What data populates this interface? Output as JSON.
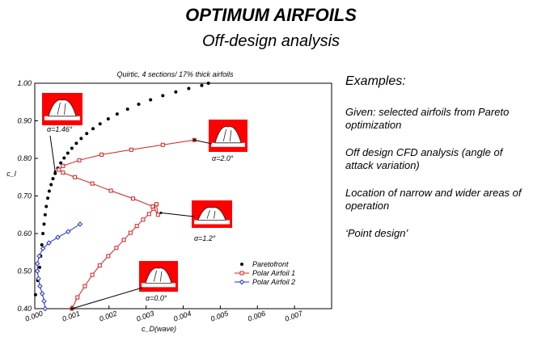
{
  "slide": {
    "title": "OPTIMUM AIRFOILS",
    "subtitle": "Off-design analysis"
  },
  "notes": {
    "heading": "Examples:",
    "items": [
      "Given: selected airfoils from Pareto optimization",
      "Off design CFD analysis (angle of attack variation)",
      "Location of narrow and wider areas of operation",
      "‘Point design’"
    ]
  },
  "colors": {
    "paretofront": "#000000",
    "polar1": "#d42020",
    "polar2": "#2030c8",
    "inset_bg": "#ff0000"
  },
  "chart_data": {
    "type": "scatter",
    "title": "Quirtic, 4 sections/ 17% thick airfoils",
    "xlabel": "c_D(wave)",
    "ylabel": "c_l",
    "xlim": [
      0,
      0.008
    ],
    "ylim": [
      0.4,
      1.0
    ],
    "xticks": [
      "0.000",
      "0.001",
      "0.002",
      "0.003",
      "0.004",
      "0.005",
      "0.006",
      "0.007"
    ],
    "yticks": [
      "0.40",
      "0.50",
      "0.60",
      "0.70",
      "0.80",
      "0.90",
      "1.00"
    ],
    "legend_position": "bottom-right",
    "series": [
      {
        "name": "Paretofront",
        "marker": "dot",
        "x": [
          2e-05,
          8e-05,
          0.00013,
          0.00016,
          0.00019,
          0.00022,
          0.00025,
          0.00028,
          0.00031,
          0.00035,
          0.00039,
          0.00044,
          0.00049,
          0.00055,
          0.00062,
          0.0007,
          0.00079,
          0.00089,
          0.001,
          0.00112,
          0.00125,
          0.0014,
          0.00157,
          0.00176,
          0.00198,
          0.00222,
          0.0025,
          0.0028,
          0.00312,
          0.00345,
          0.0038,
          0.00415,
          0.0045,
          0.00468
        ],
        "y": [
          0.437,
          0.475,
          0.51,
          0.54,
          0.57,
          0.6,
          0.625,
          0.65,
          0.672,
          0.694,
          0.713,
          0.73,
          0.746,
          0.76,
          0.774,
          0.788,
          0.801,
          0.814,
          0.827,
          0.84,
          0.853,
          0.866,
          0.879,
          0.892,
          0.905,
          0.918,
          0.931,
          0.944,
          0.956,
          0.967,
          0.977,
          0.986,
          0.994,
          1.0
        ]
      },
      {
        "name": "Polar Airfoil 1",
        "marker": "square",
        "x": [
          0.001,
          0.00115,
          0.00135,
          0.00155,
          0.00175,
          0.00198,
          0.0022,
          0.0024,
          0.00258,
          0.00275,
          0.00292,
          0.00308,
          0.0032,
          0.00328,
          0.00332,
          0.00318,
          0.00265,
          0.00205,
          0.00155,
          0.00108,
          0.00076,
          0.00065,
          0.00076,
          0.0012,
          0.0018,
          0.0026,
          0.00345,
          0.0043
        ],
        "y": [
          0.4,
          0.43,
          0.46,
          0.49,
          0.515,
          0.54,
          0.562,
          0.583,
          0.602,
          0.62,
          0.637,
          0.652,
          0.666,
          0.678,
          0.65,
          0.672,
          0.693,
          0.714,
          0.733,
          0.75,
          0.762,
          0.77,
          0.78,
          0.795,
          0.81,
          0.823,
          0.836,
          0.849
        ]
      },
      {
        "name": "Polar Airfoil 2",
        "marker": "diamond",
        "x": [
          0.00028,
          0.00025,
          0.0002,
          0.00014,
          0.0001,
          7e-05,
          7e-05,
          0.00012,
          0.00022,
          0.00038,
          0.00062,
          0.0009,
          0.00122
        ],
        "y": [
          0.4,
          0.42,
          0.44,
          0.46,
          0.48,
          0.5,
          0.52,
          0.54,
          0.56,
          0.575,
          0.59,
          0.605,
          0.625
        ]
      }
    ],
    "annotations": [
      {
        "text": "α=1.46°",
        "target_x": 0.00055,
        "target_y": 0.765
      },
      {
        "text": "α=2.0°",
        "target_x": 0.0043,
        "target_y": 0.849
      },
      {
        "text": "α=1.2°",
        "target_x": 0.0034,
        "target_y": 0.655
      },
      {
        "text": "α=0.0°",
        "target_x": 0.001,
        "target_y": 0.4
      }
    ]
  }
}
